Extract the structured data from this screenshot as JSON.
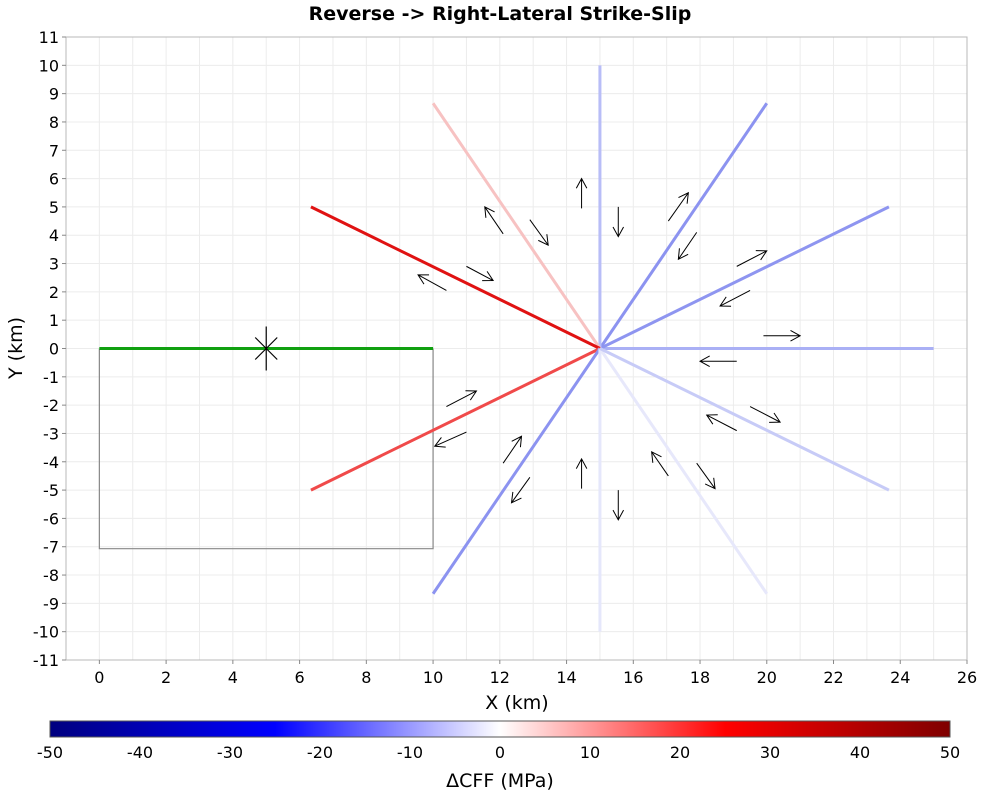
{
  "chart_data": {
    "type": "line",
    "title": "Reverse -> Right-Lateral Strike-Slip",
    "xlabel": "X (km)",
    "ylabel": "Y (km)",
    "xlim": [
      -1,
      26
    ],
    "ylim": [
      -11,
      11
    ],
    "xticks": [
      0,
      2,
      4,
      6,
      8,
      10,
      12,
      14,
      16,
      18,
      20,
      22,
      24,
      26
    ],
    "yticks": [
      -11,
      -10,
      -9,
      -8,
      -7,
      -6,
      -5,
      -4,
      -3,
      -2,
      -1,
      0,
      1,
      2,
      3,
      4,
      5,
      6,
      7,
      8,
      9,
      10,
      11
    ],
    "grid": true,
    "source_fault": {
      "trace": [
        [
          0,
          0
        ],
        [
          10,
          0
        ]
      ],
      "color": "#10a010",
      "hypocenter": [
        5,
        0
      ],
      "down_dip_outline": [
        [
          0,
          0
        ],
        [
          0,
          -7.07
        ],
        [
          10,
          -7.07
        ],
        [
          10,
          0
        ]
      ]
    },
    "receiver_faults": [
      {
        "end": [
          25,
          0
        ],
        "dcff": -6,
        "color": "#aab0f5"
      },
      {
        "end": [
          23.66,
          5
        ],
        "dcff": -10,
        "color": "#8e95f0"
      },
      {
        "end": [
          20,
          8.66
        ],
        "dcff": -11,
        "color": "#8c93f0"
      },
      {
        "end": [
          15,
          10
        ],
        "dcff": -6,
        "color": "#b8bdf7"
      },
      {
        "end": [
          10,
          8.66
        ],
        "dcff": 5,
        "color": "#f7c2c2"
      },
      {
        "end": [
          6.34,
          5
        ],
        "dcff": 27,
        "color": "#e01212"
      },
      {
        "end": [
          6.34,
          -5
        ],
        "dcff": 19,
        "color": "#f04a4a"
      },
      {
        "end": [
          10,
          -8.66
        ],
        "dcff": -11,
        "color": "#8c93f0"
      },
      {
        "end": [
          15,
          -10
        ],
        "dcff": -2,
        "color": "#e5e7fb"
      },
      {
        "end": [
          20,
          -8.66
        ],
        "dcff": -2,
        "color": "#e7e8fb"
      },
      {
        "end": [
          23.66,
          -5
        ],
        "dcff": -5,
        "color": "#c7cbf7"
      }
    ],
    "center": [
      15,
      0
    ],
    "slip_arrows": [
      {
        "from": [
          19.9,
          0.45
        ],
        "to": [
          21.0,
          0.45
        ]
      },
      {
        "from": [
          19.1,
          -0.45
        ],
        "to": [
          18.0,
          -0.45
        ]
      },
      {
        "from": [
          19.1,
          2.9
        ],
        "to": [
          20.0,
          3.45
        ]
      },
      {
        "from": [
          19.5,
          2.05
        ],
        "to": [
          18.6,
          1.5
        ]
      },
      {
        "from": [
          17.05,
          4.5
        ],
        "to": [
          17.65,
          5.5
        ]
      },
      {
        "from": [
          17.9,
          4.1
        ],
        "to": [
          17.35,
          3.15
        ]
      },
      {
        "from": [
          14.45,
          4.95
        ],
        "to": [
          14.45,
          6.0
        ]
      },
      {
        "from": [
          15.55,
          5.0
        ],
        "to": [
          15.55,
          3.95
        ]
      },
      {
        "from": [
          12.1,
          4.05
        ],
        "to": [
          11.55,
          5.0
        ]
      },
      {
        "from": [
          12.9,
          4.55
        ],
        "to": [
          13.45,
          3.65
        ]
      },
      {
        "from": [
          11.0,
          2.9
        ],
        "to": [
          11.8,
          2.4
        ]
      },
      {
        "from": [
          10.4,
          2.05
        ],
        "to": [
          9.55,
          2.6
        ]
      },
      {
        "from": [
          10.4,
          -2.05
        ],
        "to": [
          11.3,
          -1.5
        ]
      },
      {
        "from": [
          11.0,
          -2.95
        ],
        "to": [
          10.05,
          -3.45
        ]
      },
      {
        "from": [
          12.1,
          -4.05
        ],
        "to": [
          12.65,
          -3.1
        ]
      },
      {
        "from": [
          12.9,
          -4.55
        ],
        "to": [
          12.35,
          -5.45
        ]
      },
      {
        "from": [
          14.45,
          -4.95
        ],
        "to": [
          14.45,
          -3.9
        ]
      },
      {
        "from": [
          15.55,
          -5.0
        ],
        "to": [
          15.55,
          -6.05
        ]
      },
      {
        "from": [
          17.05,
          -4.5
        ],
        "to": [
          16.55,
          -3.65
        ]
      },
      {
        "from": [
          17.9,
          -4.05
        ],
        "to": [
          18.45,
          -4.95
        ]
      },
      {
        "from": [
          19.1,
          -2.9
        ],
        "to": [
          18.2,
          -2.35
        ]
      },
      {
        "from": [
          19.5,
          -2.05
        ],
        "to": [
          20.4,
          -2.6
        ]
      }
    ],
    "colorbar": {
      "label": "ΔCFF (MPa)",
      "min": -50,
      "max": 50,
      "ticks": [
        -50,
        -40,
        -30,
        -20,
        -10,
        0,
        10,
        20,
        30,
        40,
        50
      ],
      "stops": [
        "#00007f",
        "#0000ff",
        "#ffffff",
        "#ff0000",
        "#7f0000"
      ]
    }
  }
}
